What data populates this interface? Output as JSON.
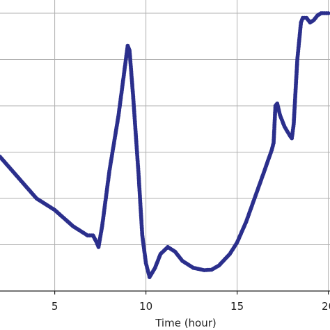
{
  "chart_data": {
    "type": "scatter",
    "xlabel": "Time (hour)",
    "ylabel": "",
    "xlim": [
      2,
      20
    ],
    "ylim": [
      0,
      6
    ],
    "x_ticks": [
      5,
      10,
      15,
      20
    ],
    "x_tick_labels": [
      "5",
      "10",
      "15",
      "20"
    ],
    "y_ticks": [
      1,
      2,
      3,
      4,
      5,
      6
    ],
    "grid": true,
    "marker_color": "#2b2f8c",
    "grid_color": "#b0b0b0",
    "series": [
      {
        "x": [
          2.0,
          3.0,
          4.0,
          5.0,
          6.0,
          6.8,
          7.1,
          7.3,
          7.4,
          7.6,
          8.0,
          8.5,
          9.0,
          9.1,
          9.3,
          9.6,
          9.8,
          10.0,
          10.2,
          10.5,
          10.8,
          11.2,
          11.6,
          12.0,
          12.6,
          13.2,
          13.6,
          14.0,
          14.6,
          15.0,
          15.5,
          16.0,
          16.5,
          16.9,
          17.0,
          17.1,
          17.2,
          17.35,
          17.6,
          17.9,
          18.0,
          18.1,
          18.3,
          18.5,
          18.6,
          18.8,
          19.0,
          19.2,
          19.4,
          19.6,
          19.8,
          20.0
        ],
        "y": [
          2.9,
          2.45,
          2.0,
          1.75,
          1.4,
          1.2,
          1.2,
          1.05,
          0.95,
          1.4,
          2.6,
          3.8,
          5.3,
          5.2,
          4.2,
          2.5,
          1.2,
          0.6,
          0.3,
          0.5,
          0.8,
          0.95,
          0.85,
          0.65,
          0.5,
          0.45,
          0.46,
          0.55,
          0.8,
          1.05,
          1.5,
          2.05,
          2.6,
          3.05,
          3.2,
          4.0,
          4.05,
          3.8,
          3.55,
          3.35,
          3.3,
          3.6,
          5.0,
          5.8,
          5.9,
          5.9,
          5.8,
          5.85,
          5.95,
          6.0,
          6.0,
          6.0
        ]
      }
    ]
  }
}
